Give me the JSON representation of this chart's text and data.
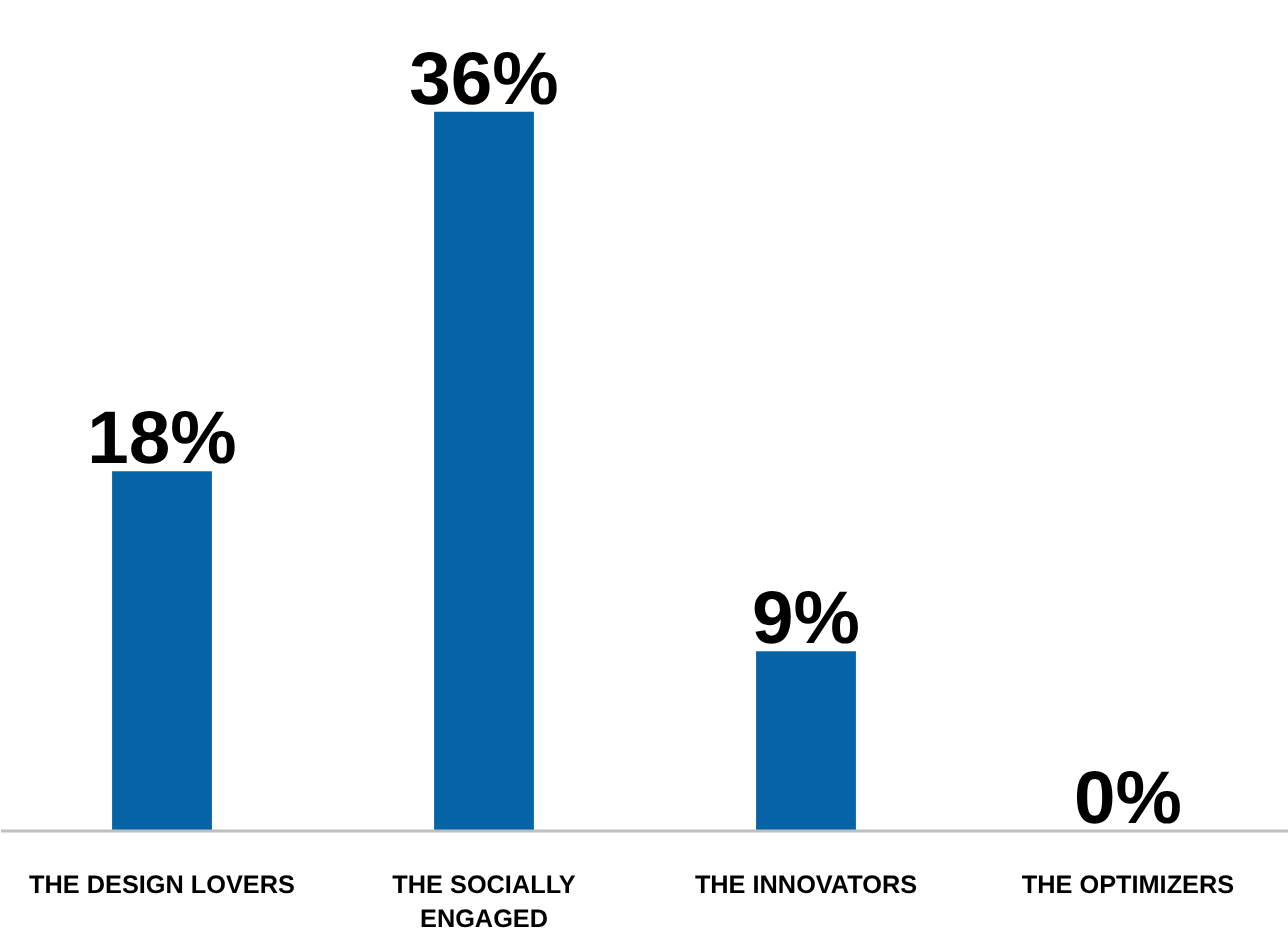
{
  "chart_data": {
    "type": "bar",
    "categories": [
      "THE DESIGN LOVERS",
      "THE SOCIALLY ENGAGED",
      "THE INNOVATORS",
      "THE OPTIMIZERS"
    ],
    "values": [
      18,
      36,
      9,
      0
    ],
    "value_labels": [
      "18%",
      "36%",
      "9%",
      "0%"
    ],
    "color": "#0563a6"
  }
}
